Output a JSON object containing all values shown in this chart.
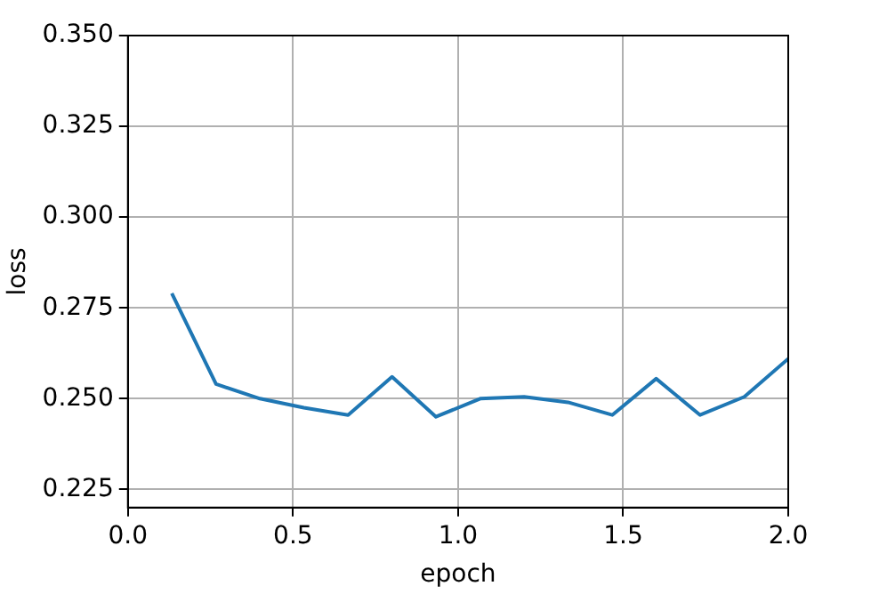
{
  "chart_data": {
    "type": "line",
    "xlabel": "epoch",
    "ylabel": "loss",
    "x": [
      0.133,
      0.267,
      0.4,
      0.533,
      0.667,
      0.8,
      0.933,
      1.067,
      1.2,
      1.333,
      1.467,
      1.6,
      1.733,
      1.867,
      2.0
    ],
    "series": [
      {
        "color": "#1f77b4",
        "values": [
          0.279,
          0.254,
          0.25,
          0.2475,
          0.2455,
          0.256,
          0.245,
          0.25,
          0.2505,
          0.249,
          0.2455,
          0.2555,
          0.2455,
          0.2505,
          0.261
        ]
      }
    ],
    "xlim": [
      0,
      2
    ],
    "xticks": [
      {
        "value": 0,
        "label": "0.0"
      },
      {
        "value": 0.5,
        "label": "0.5"
      },
      {
        "value": 1,
        "label": "1.0"
      },
      {
        "value": 1.5,
        "label": "1.5"
      },
      {
        "value": 2,
        "label": "2.0"
      }
    ],
    "ylim": [
      0.22,
      0.35
    ],
    "yticks": [
      0.225,
      {
        "value": 0.25,
        "label": "0.250"
      },
      0.275,
      {
        "value": 0.3,
        "label": "0.300"
      },
      0.325,
      {
        "value": 0.35,
        "label": "0.350"
      }
    ],
    "grid": true,
    "marker": "none",
    "line_style": "solid"
  }
}
